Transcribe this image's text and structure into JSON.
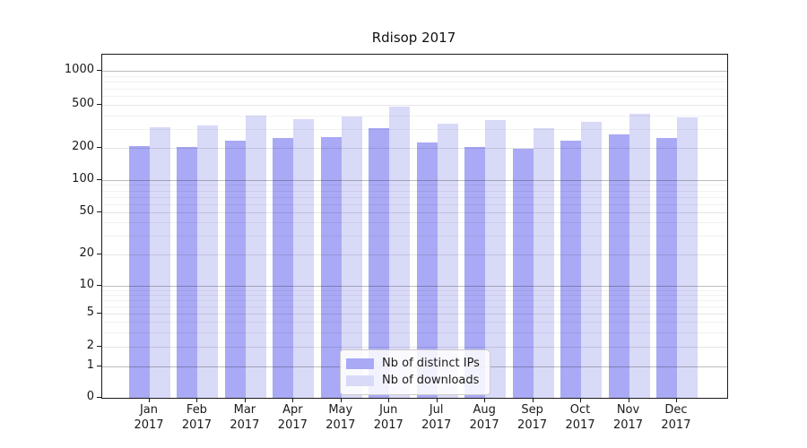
{
  "title": "Rdisop 2017",
  "year": "2017",
  "colors": {
    "distinct_ips": "#a9a9f5",
    "downloads": "#d9d9f8",
    "axis": "#1a1a1a",
    "background": "#ffffff"
  },
  "chart_data": {
    "type": "bar",
    "title": "Rdisop 2017",
    "categories": [
      "Jan 2017",
      "Feb 2017",
      "Mar 2017",
      "Apr 2017",
      "May 2017",
      "Jun 2017",
      "Jul 2017",
      "Aug 2017",
      "Sep 2017",
      "Oct 2017",
      "Nov 2017",
      "Dec 2017"
    ],
    "month_labels": [
      "Jan",
      "Feb",
      "Mar",
      "Apr",
      "May",
      "Jun",
      "Jul",
      "Aug",
      "Sep",
      "Oct",
      "Nov",
      "Dec"
    ],
    "year_label": "2017",
    "series": [
      {
        "name": "Nb of distinct IPs",
        "color": "#a9a9f5",
        "values": [
          207,
          203,
          235,
          247,
          251,
          305,
          224,
          205,
          197,
          233,
          266,
          249
        ]
      },
      {
        "name": "Nb of downloads",
        "color": "#d9d9f8",
        "values": [
          310,
          320,
          400,
          370,
          390,
          485,
          335,
          365,
          305,
          345,
          412,
          382
        ]
      }
    ],
    "xlabel": "",
    "ylabel": "",
    "yticks": [
      0,
      1,
      2,
      5,
      10,
      20,
      50,
      100,
      200,
      500,
      1000
    ],
    "scale": "log-like with zero baseline (ticks 0,1,2,5,10,20,50,100,200,500,1000)",
    "ylim": [
      0,
      1400
    ],
    "grid": true,
    "legend_position": "inside lower-center"
  }
}
